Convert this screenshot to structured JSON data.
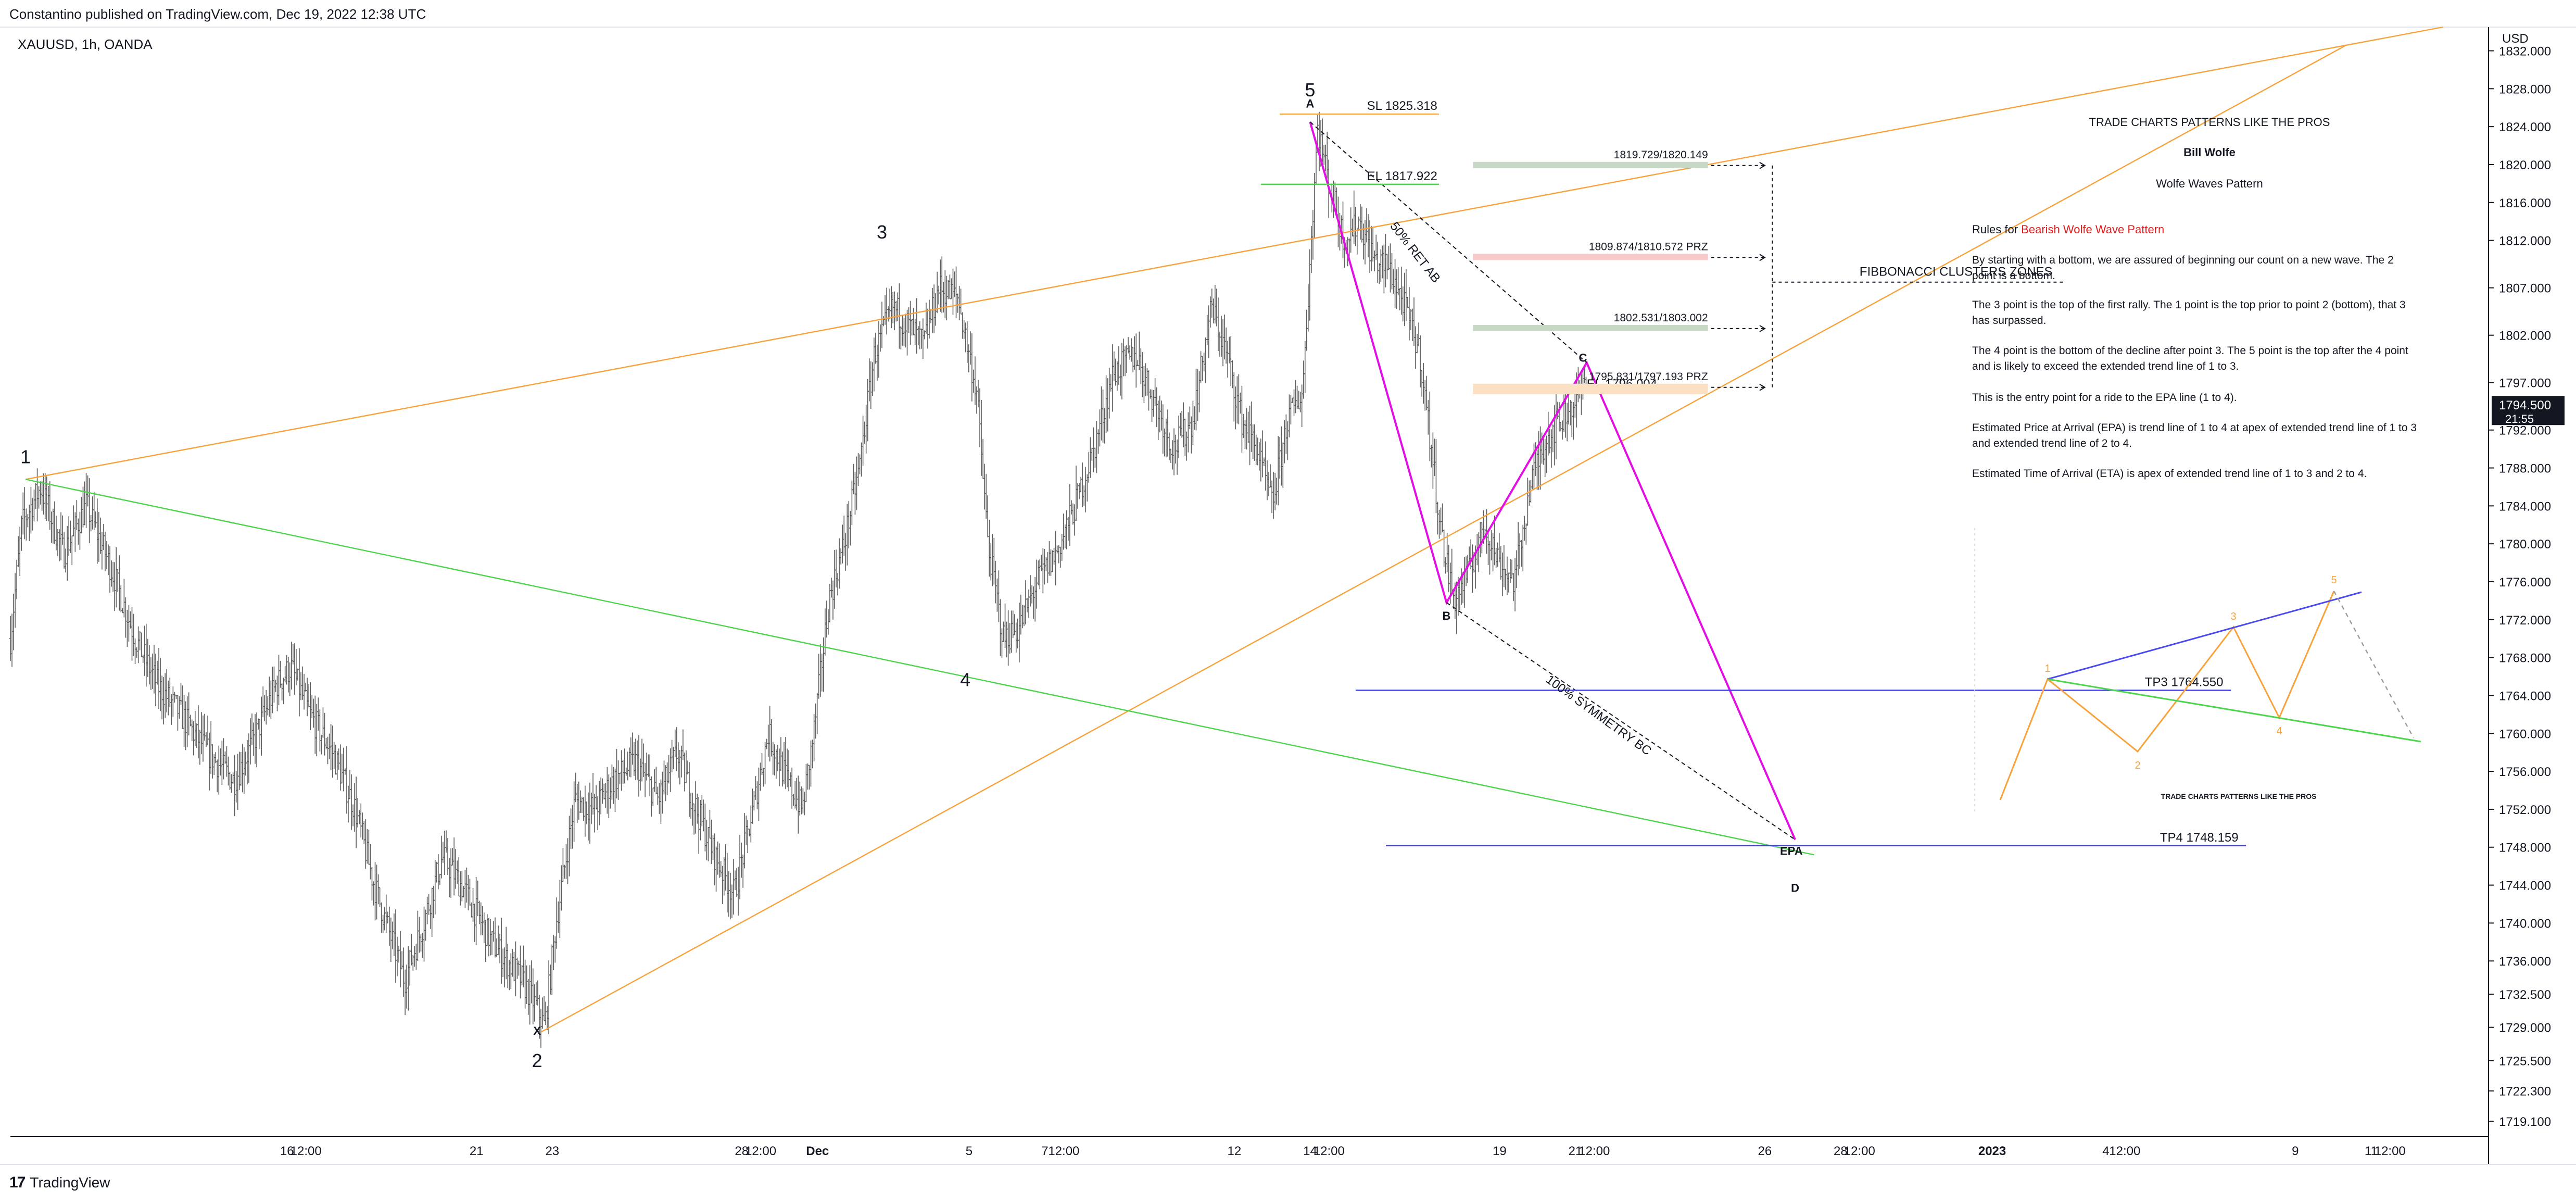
{
  "header": {
    "publish_info": "Constantino published on TradingView.com, Dec 19, 2022 12:38 UTC",
    "symbol_info": "XAUUSD, 1h, OANDA",
    "brand": "TradingView"
  },
  "colors": {
    "candle": "#5d5d5d",
    "orange_trend": "#f7a23a",
    "green_trend": "#4cd44c",
    "magenta": "#e30ee3",
    "blue_tp": "#3a3af0",
    "price_badge_bg": "#131722",
    "prz_red": "#f7c9c9",
    "prz_green": "#c7d8c7",
    "prz_orange": "#fbe0c4",
    "rules_red": "#e01c1c"
  },
  "chart_data": {
    "type": "candlestick",
    "title": "XAUUSD, 1h, OANDA",
    "y_axis": {
      "unit": "USD",
      "range": [
        1717.5,
        1834.5
      ],
      "ticks": [
        1832.0,
        1828.0,
        1824.0,
        1820.0,
        1816.0,
        1812.0,
        1807.0,
        1802.0,
        1797.0,
        1792.0,
        1788.0,
        1784.0,
        1780.0,
        1776.0,
        1772.0,
        1768.0,
        1764.0,
        1760.0,
        1756.0,
        1752.0,
        1748.0,
        1744.0,
        1740.0,
        1736.0,
        1732.5,
        1729.0,
        1725.5,
        1722.3,
        1719.1
      ],
      "tick_labels": [
        "1832.000",
        "1828.000",
        "1824.000",
        "1820.000",
        "1816.000",
        "1812.000",
        "1807.000",
        "1802.000",
        "1797.000",
        "1792.000",
        "1788.000",
        "1784.000",
        "1780.000",
        "1776.000",
        "1772.000",
        "1768.000",
        "1764.000",
        "1760.000",
        "1756.000",
        "1752.000",
        "1748.000",
        "1744.000",
        "1740.000",
        "1736.000",
        "1732.500",
        "1729.000",
        "1725.500",
        "1722.300",
        "1719.100"
      ],
      "current_price": "1794.500",
      "countdown": "21:55"
    },
    "x_axis": {
      "tick_labels": [
        {
          "label": "16",
          "t": 7.3
        },
        {
          "label": "12:00",
          "t": 7.8
        },
        {
          "label": "21",
          "t": 12.3
        },
        {
          "label": "23",
          "t": 14.3
        },
        {
          "label": "28",
          "t": 19.3
        },
        {
          "label": "12:00",
          "t": 19.8
        },
        {
          "label": "Dec",
          "t": 21.3
        },
        {
          "label": "5",
          "t": 25.3
        },
        {
          "label": "7",
          "t": 27.3
        },
        {
          "label": "12:00",
          "t": 27.8
        },
        {
          "label": "12",
          "t": 32.3
        },
        {
          "label": "14",
          "t": 34.3
        },
        {
          "label": "12:00",
          "t": 34.8
        },
        {
          "label": "19",
          "t": 39.3
        },
        {
          "label": "21",
          "t": 41.3
        },
        {
          "label": "12:00",
          "t": 41.8
        },
        {
          "label": "26",
          "t": 46.3
        },
        {
          "label": "28",
          "t": 48.3
        },
        {
          "label": "12:00",
          "t": 48.8
        },
        {
          "label": "2023",
          "t": 52.3
        },
        {
          "label": "4",
          "t": 55.3
        },
        {
          "label": "12:00",
          "t": 55.8
        },
        {
          "label": "9",
          "t": 60.3
        },
        {
          "label": "11",
          "t": 62.3
        },
        {
          "label": "12:00",
          "t": 62.8
        }
      ]
    },
    "price_path": [
      [
        0.0,
        1770
      ],
      [
        0.3,
        1782
      ],
      [
        0.8,
        1786
      ],
      [
        1.4,
        1779
      ],
      [
        2.0,
        1784
      ],
      [
        2.7,
        1777
      ],
      [
        3.3,
        1770
      ],
      [
        3.9,
        1765
      ],
      [
        4.5,
        1762
      ],
      [
        5.2,
        1758
      ],
      [
        5.9,
        1755
      ],
      [
        6.4,
        1759
      ],
      [
        7.0,
        1765
      ],
      [
        7.4,
        1767
      ],
      [
        7.9,
        1762
      ],
      [
        8.5,
        1758
      ],
      [
        9.1,
        1752
      ],
      [
        9.6,
        1744
      ],
      [
        10.0,
        1739
      ],
      [
        10.4,
        1734
      ],
      [
        10.9,
        1740
      ],
      [
        11.4,
        1747
      ],
      [
        11.9,
        1744
      ],
      [
        12.3,
        1741
      ],
      [
        12.7,
        1738
      ],
      [
        13.1,
        1736
      ],
      [
        13.5,
        1734
      ],
      [
        13.9,
        1731
      ],
      [
        14.1,
        1729
      ],
      [
        14.4,
        1740
      ],
      [
        14.9,
        1753
      ],
      [
        15.4,
        1752
      ],
      [
        15.9,
        1755
      ],
      [
        16.5,
        1757
      ],
      [
        17.1,
        1753
      ],
      [
        17.6,
        1758
      ],
      [
        18.1,
        1752
      ],
      [
        18.6,
        1747
      ],
      [
        19.1,
        1743
      ],
      [
        19.6,
        1752
      ],
      [
        20.0,
        1760
      ],
      [
        20.5,
        1755
      ],
      [
        20.9,
        1752
      ],
      [
        21.2,
        1760
      ],
      [
        21.6,
        1774
      ],
      [
        22.0,
        1780
      ],
      [
        22.4,
        1788
      ],
      [
        22.8,
        1800
      ],
      [
        23.3,
        1805
      ],
      [
        23.7,
        1803
      ],
      [
        24.1,
        1801
      ],
      [
        24.5,
        1807
      ],
      [
        25.0,
        1806
      ],
      [
        25.5,
        1796
      ],
      [
        25.8,
        1780
      ],
      [
        26.2,
        1770
      ],
      [
        26.6,
        1771
      ],
      [
        27.1,
        1776
      ],
      [
        27.6,
        1779
      ],
      [
        28.1,
        1784
      ],
      [
        28.6,
        1790
      ],
      [
        29.1,
        1798
      ],
      [
        29.7,
        1800
      ],
      [
        30.3,
        1794
      ],
      [
        30.7,
        1790
      ],
      [
        31.2,
        1793
      ],
      [
        31.7,
        1805
      ],
      [
        32.1,
        1800
      ],
      [
        32.5,
        1793
      ],
      [
        32.9,
        1790
      ],
      [
        33.3,
        1784
      ],
      [
        33.7,
        1793
      ],
      [
        34.1,
        1796
      ],
      [
        34.3,
        1810
      ],
      [
        34.5,
        1824
      ],
      [
        34.8,
        1818
      ],
      [
        35.2,
        1812
      ],
      [
        35.6,
        1814
      ],
      [
        36.0,
        1810
      ],
      [
        36.4,
        1809
      ],
      [
        36.8,
        1805
      ],
      [
        37.2,
        1800
      ],
      [
        37.5,
        1790
      ],
      [
        37.8,
        1780
      ],
      [
        38.1,
        1774
      ],
      [
        38.5,
        1777
      ],
      [
        38.9,
        1782
      ],
      [
        39.3,
        1778
      ],
      [
        39.7,
        1776
      ],
      [
        40.1,
        1786
      ],
      [
        40.5,
        1791
      ],
      [
        40.9,
        1793
      ],
      [
        41.3,
        1795
      ],
      [
        41.6,
        1797
      ]
    ],
    "annotations": {
      "wave_labels": [
        {
          "text": "1",
          "t": 0.4,
          "p": 1788.5
        },
        {
          "text": "2",
          "t": 13.9,
          "p": 1724.8
        },
        {
          "text": "X",
          "t": 13.9,
          "p": 1728.2
        },
        {
          "text": "3",
          "t": 23.0,
          "p": 1812.2
        },
        {
          "text": "4",
          "t": 25.2,
          "p": 1765.0
        },
        {
          "text": "5",
          "t": 34.3,
          "p": 1827.2
        },
        {
          "text": "A",
          "t": 34.3,
          "p": 1826.0
        },
        {
          "text": "B",
          "t": 37.9,
          "p": 1772.0
        },
        {
          "text": "C",
          "t": 41.5,
          "p": 1799.2
        },
        {
          "text": "D",
          "t": 47.1,
          "p": 1743.3
        },
        {
          "text": "EPA",
          "t": 47.0,
          "p": 1747.2
        }
      ],
      "levels": [
        {
          "label": "SL 1825.318",
          "price": 1825.318
        },
        {
          "label": "EL 1817.922",
          "price": 1817.922
        },
        {
          "label": "EL 1796.004",
          "price": 1796.004
        },
        {
          "label": "TP3 1764.550",
          "price": 1764.55
        },
        {
          "label": "TP4 1748.159",
          "price": 1748.159
        }
      ],
      "prz_zones": [
        {
          "label": "1819.729/1820.149",
          "price": 1819.9
        },
        {
          "label": "1809.874/1810.572 PRZ",
          "price": 1810.2
        },
        {
          "label": "1802.531/1803.002",
          "price": 1802.7
        },
        {
          "label": "1795.831/1797.193 PRZ",
          "price": 1796.5
        }
      ],
      "fib_label": "FIBBONACCI CLUSTERS ZONES",
      "ret_label": "50% RET AB",
      "sym_label": "100% SYMMETRY BC"
    }
  },
  "info_panel": {
    "title": "TRADE CHARTS PATTERNS LIKE THE PROS",
    "author": "Bill Wolfe",
    "subtitle": "Wolfe Waves Pattern",
    "rules_prefix": "Rules for ",
    "rules_highlight": "Bearish Wolfe Wave Pattern",
    "paragraphs": [
      [
        "By starting with a bottom, we are assured of beginning our count on a new wave. The 2",
        "point is a bottom."
      ],
      [
        "The 3 point is the top of the first rally. The 1 point is the top prior to point 2 (bottom), that 3",
        "has surpassed."
      ],
      [
        "The 4 point is the bottom of the decline after point 3. The 5 point is the top after the 4 point",
        "and is likely to exceed the extended trend line of 1 to 3."
      ],
      [
        "This is the entry point for a ride to the EPA line (1 to 4)."
      ],
      [
        "Estimated Price at Arrival (EPA) is trend line of 1 to 4 at apex of extended trend line of 1 to 3",
        "and extended trend line of 2 to 4."
      ],
      [
        "Estimated Time of Arrival (ETA) is apex of extended trend line of 1 to 3 and 2 to 4."
      ]
    ],
    "diagram_labels": [
      "1",
      "2",
      "3",
      "4",
      "5"
    ],
    "diagram_caption": "TRADE CHARTS PATTERNS LIKE THE PROS"
  }
}
